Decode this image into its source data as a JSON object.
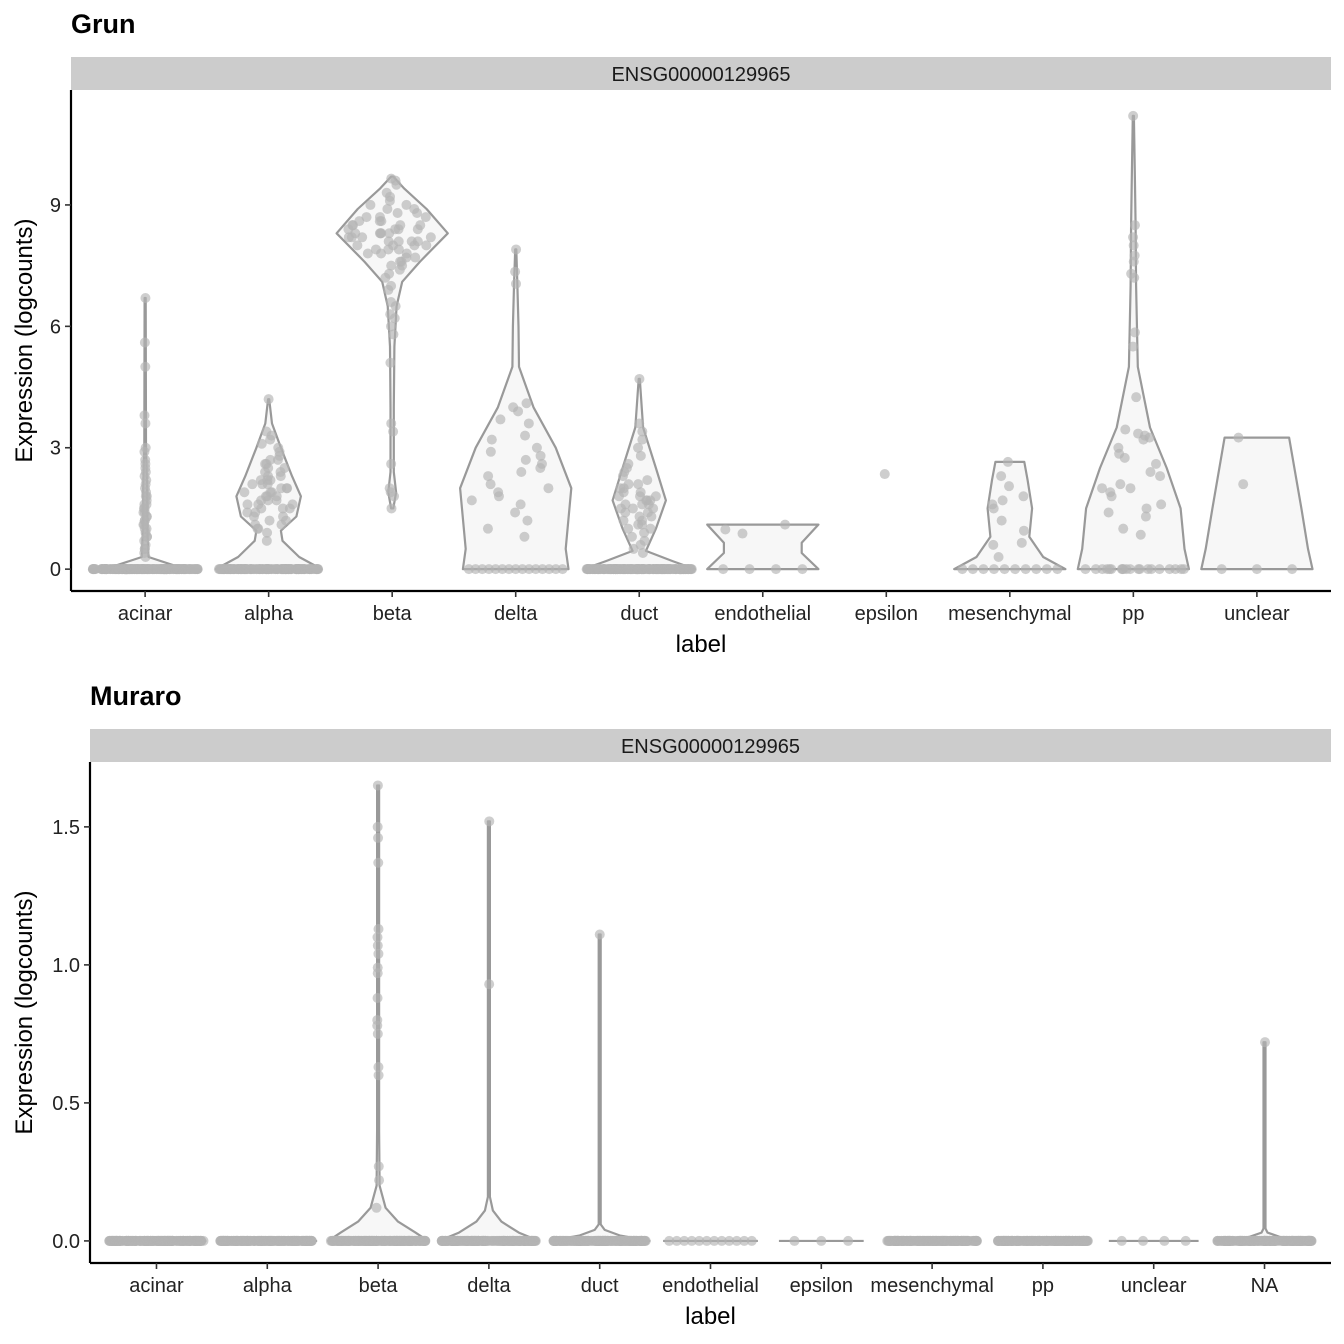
{
  "chart_data": [
    {
      "type": "violin",
      "title": "Grun",
      "facet_label": "ENSG00000129965",
      "xlabel": "label",
      "ylabel": "Expression (logcounts)",
      "ylim": [
        -0.54,
        11.84
      ],
      "yticks": [
        0,
        3,
        6,
        9
      ],
      "ytick_labels": [
        "0",
        "3",
        "6",
        "9"
      ],
      "colors": {
        "points": "#b3b3b3",
        "violin_stroke": "#999999",
        "violin_fill": "#f7f7f7",
        "strip": "#cccccc"
      },
      "categories": [
        "acinar",
        "alpha",
        "beta",
        "delta",
        "duct",
        "endothelial",
        "epsilon",
        "mesenchymal",
        "pp",
        "unclear"
      ],
      "groups": [
        {
          "name": "acinar",
          "zero_count": 200,
          "density": [
            [
              0,
              1
            ],
            [
              0.1,
              0.5
            ],
            [
              0.3,
              0.06
            ],
            [
              1,
              0.04
            ],
            [
              2,
              0.035
            ],
            [
              3,
              0.015
            ],
            [
              6.7,
              0.01
            ]
          ],
          "values": [
            0.3,
            0.4,
            0.5,
            0.5,
            0.6,
            0.7,
            0.8,
            0.8,
            0.9,
            1.0,
            1.0,
            1.1,
            1.1,
            1.2,
            1.2,
            1.3,
            1.3,
            1.4,
            1.4,
            1.5,
            1.5,
            1.6,
            1.6,
            1.7,
            1.8,
            1.8,
            1.9,
            2.0,
            2.1,
            2.2,
            2.3,
            2.4,
            2.5,
            2.6,
            2.7,
            2.9,
            3.0,
            3.6,
            3.8,
            5.0,
            5.6,
            6.7
          ]
        },
        {
          "name": "alpha",
          "zero_count": 150,
          "density": [
            [
              0,
              0.95
            ],
            [
              0.3,
              0.55
            ],
            [
              0.7,
              0.25
            ],
            [
              0.95,
              0.22
            ],
            [
              1.3,
              0.5
            ],
            [
              1.8,
              0.58
            ],
            [
              2.3,
              0.42
            ],
            [
              3,
              0.22
            ],
            [
              3.6,
              0.06
            ],
            [
              4.2,
              0.01
            ]
          ],
          "values": [
            0.7,
            0.9,
            1.0,
            1.0,
            1.1,
            1.1,
            1.2,
            1.2,
            1.3,
            1.3,
            1.4,
            1.4,
            1.5,
            1.5,
            1.5,
            1.6,
            1.6,
            1.6,
            1.7,
            1.7,
            1.7,
            1.8,
            1.8,
            1.8,
            1.9,
            1.9,
            1.9,
            2.0,
            2.0,
            2.0,
            2.1,
            2.1,
            2.1,
            2.2,
            2.2,
            2.2,
            2.3,
            2.3,
            2.4,
            2.4,
            2.5,
            2.5,
            2.6,
            2.6,
            2.7,
            2.7,
            2.8,
            2.9,
            3.0,
            3.1,
            3.2,
            3.3,
            3.4,
            4.2
          ]
        },
        {
          "name": "beta",
          "zero_count": 0,
          "density": [
            [
              1.5,
              0.02
            ],
            [
              1.9,
              0.07
            ],
            [
              2.4,
              0.03
            ],
            [
              4,
              0.03
            ],
            [
              5.5,
              0.04
            ],
            [
              6.5,
              0.08
            ],
            [
              7.1,
              0.18
            ],
            [
              7.6,
              0.5
            ],
            [
              8.3,
              1
            ],
            [
              8.9,
              0.62
            ],
            [
              9.4,
              0.22
            ],
            [
              9.7,
              0.02
            ]
          ],
          "values": [
            1.5,
            1.8,
            1.9,
            2.0,
            2.6,
            3.4,
            3.6,
            5.1,
            5.8,
            6.0,
            6.2,
            6.3,
            6.5,
            6.6,
            6.9,
            7.0,
            7.2,
            7.3,
            7.4,
            7.5,
            7.5,
            7.6,
            7.6,
            7.7,
            7.7,
            7.8,
            7.8,
            7.8,
            7.9,
            7.9,
            7.9,
            8.0,
            8.0,
            8.0,
            8.0,
            8.1,
            8.1,
            8.1,
            8.1,
            8.2,
            8.2,
            8.2,
            8.2,
            8.3,
            8.3,
            8.3,
            8.3,
            8.3,
            8.4,
            8.4,
            8.4,
            8.4,
            8.5,
            8.5,
            8.5,
            8.5,
            8.6,
            8.6,
            8.6,
            8.7,
            8.7,
            8.7,
            8.8,
            8.8,
            8.9,
            8.9,
            9.0,
            9.0,
            9.1,
            9.2,
            9.3,
            9.5,
            9.6,
            9.65
          ]
        },
        {
          "name": "delta",
          "zero_count": 15,
          "density": [
            [
              0,
              0.95
            ],
            [
              0.5,
              0.9
            ],
            [
              2,
              1
            ],
            [
              3,
              0.72
            ],
            [
              4,
              0.32
            ],
            [
              5,
              0.06
            ],
            [
              6,
              0.05
            ],
            [
              7,
              0.03
            ],
            [
              7.9,
              0.01
            ]
          ],
          "values": [
            0.8,
            1.0,
            1.2,
            1.4,
            1.6,
            1.7,
            1.8,
            1.9,
            2.0,
            2.1,
            2.3,
            2.4,
            2.5,
            2.6,
            2.7,
            2.8,
            2.9,
            3.0,
            3.2,
            3.3,
            3.6,
            3.7,
            3.9,
            4.0,
            4.1,
            7.05,
            7.35,
            7.9
          ]
        },
        {
          "name": "duct",
          "zero_count": 200,
          "density": [
            [
              0,
              1
            ],
            [
              0.2,
              0.6
            ],
            [
              0.45,
              0.12
            ],
            [
              1,
              0.3
            ],
            [
              1.7,
              0.48
            ],
            [
              2.5,
              0.3
            ],
            [
              3.5,
              0.07
            ],
            [
              4.7,
              0.01
            ]
          ],
          "values": [
            0.4,
            0.5,
            0.6,
            0.7,
            0.8,
            0.9,
            1.0,
            1.0,
            1.1,
            1.1,
            1.2,
            1.2,
            1.3,
            1.3,
            1.4,
            1.4,
            1.5,
            1.5,
            1.5,
            1.6,
            1.6,
            1.6,
            1.7,
            1.7,
            1.7,
            1.8,
            1.8,
            1.8,
            1.9,
            1.9,
            2.0,
            2.0,
            2.1,
            2.1,
            2.2,
            2.3,
            2.4,
            2.5,
            2.6,
            2.8,
            3.0,
            3.2,
            3.4,
            3.6,
            4.7
          ]
        },
        {
          "name": "endothelial",
          "zero_count": 4,
          "density": [
            [
              0,
              1
            ],
            [
              0.4,
              0.7
            ],
            [
              0.65,
              0.7
            ],
            [
              1.1,
              1
            ]
          ],
          "values": [
            0.88,
            0.98,
            1.1
          ]
        },
        {
          "name": "epsilon",
          "zero_count": 0,
          "density": [],
          "values": [
            2.35
          ]
        },
        {
          "name": "mesenchymal",
          "zero_count": 10,
          "density": [
            [
              0,
              1
            ],
            [
              0.3,
              0.6
            ],
            [
              0.8,
              0.35
            ],
            [
              1.5,
              0.4
            ],
            [
              2.2,
              0.32
            ],
            [
              2.65,
              0.26
            ]
          ],
          "values": [
            0.3,
            0.6,
            0.65,
            0.95,
            1.2,
            1.5,
            1.6,
            1.7,
            1.8,
            2.05,
            2.3,
            2.65
          ]
        },
        {
          "name": "pp",
          "zero_count": 20,
          "density": [
            [
              0,
              1
            ],
            [
              0.5,
              0.92
            ],
            [
              1.5,
              0.85
            ],
            [
              2.5,
              0.6
            ],
            [
              3.5,
              0.3
            ],
            [
              5,
              0.08
            ],
            [
              7,
              0.05
            ],
            [
              8.5,
              0.04
            ],
            [
              9.5,
              0.03
            ],
            [
              11.2,
              0.01
            ]
          ],
          "values": [
            0.85,
            1.0,
            1.3,
            1.4,
            1.5,
            1.6,
            1.8,
            1.9,
            2.0,
            2.0,
            2.1,
            2.3,
            2.4,
            2.6,
            2.75,
            2.85,
            3.0,
            3.2,
            3.25,
            3.3,
            3.35,
            3.45,
            4.25,
            5.5,
            5.85,
            7.2,
            7.3,
            7.6,
            7.75,
            8.0,
            8.2,
            8.5,
            11.2
          ]
        },
        {
          "name": "unclear",
          "zero_count": 3,
          "density": [
            [
              0,
              1
            ],
            [
              0.5,
              0.92
            ],
            [
              1.5,
              0.8
            ],
            [
              3.25,
              0.58
            ]
          ],
          "values": [
            2.1,
            3.25
          ]
        }
      ]
    },
    {
      "type": "violin",
      "title": "Muraro",
      "facet_label": "ENSG00000129965",
      "xlabel": "label",
      "ylabel": "Expression (logcounts)",
      "ylim": [
        -0.08,
        1.735
      ],
      "yticks": [
        0,
        0.5,
        1.0,
        1.5
      ],
      "ytick_labels": [
        "0.0",
        "0.5",
        "1.0",
        "1.5"
      ],
      "colors": {
        "points": "#b3b3b3",
        "violin_stroke": "#999999",
        "violin_fill": "#f7f7f7",
        "strip": "#cccccc"
      },
      "categories": [
        "acinar",
        "alpha",
        "beta",
        "delta",
        "duct",
        "endothelial",
        "epsilon",
        "mesenchymal",
        "pp",
        "unclear",
        "NA"
      ],
      "groups": [
        {
          "name": "acinar",
          "zero_count": 200,
          "density": [
            [
              0,
              1
            ]
          ],
          "values": []
        },
        {
          "name": "alpha",
          "zero_count": 200,
          "density": [
            [
              0,
              1
            ]
          ],
          "values": []
        },
        {
          "name": "beta",
          "zero_count": 200,
          "density": [
            [
              0,
              1
            ],
            [
              0.03,
              0.75
            ],
            [
              0.07,
              0.4
            ],
            [
              0.12,
              0.15
            ],
            [
              0.2,
              0.03
            ],
            [
              0.4,
              0.02
            ],
            [
              1.65,
              0.02
            ]
          ],
          "values": [
            0.12,
            0.22,
            0.27,
            0.6,
            0.63,
            0.75,
            0.78,
            0.8,
            0.88,
            0.97,
            0.99,
            1.04,
            1.07,
            1.1,
            1.13,
            1.37,
            1.46,
            1.5,
            1.65
          ]
        },
        {
          "name": "delta",
          "zero_count": 200,
          "density": [
            [
              0,
              1
            ],
            [
              0.03,
              0.6
            ],
            [
              0.07,
              0.25
            ],
            [
              0.11,
              0.08
            ],
            [
              0.16,
              0.02
            ],
            [
              1.52,
              0.02
            ]
          ],
          "values": [
            0.93,
            1.52
          ]
        },
        {
          "name": "duct",
          "zero_count": 200,
          "density": [
            [
              0,
              1
            ],
            [
              0.02,
              0.4
            ],
            [
              0.04,
              0.1
            ],
            [
              0.06,
              0.02
            ],
            [
              1.11,
              0.02
            ]
          ],
          "values": [
            1.11
          ]
        },
        {
          "name": "endothelial",
          "zero_count": 12,
          "density": [
            [
              0,
              0.95
            ]
          ],
          "values": []
        },
        {
          "name": "epsilon",
          "zero_count": 3,
          "density": [
            [
              0,
              0.85
            ]
          ],
          "values": []
        },
        {
          "name": "mesenchymal",
          "zero_count": 200,
          "density": [
            [
              0,
              0.95
            ]
          ],
          "values": []
        },
        {
          "name": "pp",
          "zero_count": 200,
          "density": [
            [
              0,
              0.95
            ]
          ],
          "values": []
        },
        {
          "name": "unclear",
          "zero_count": 4,
          "density": [
            [
              0,
              0.9
            ]
          ],
          "values": []
        },
        {
          "name": "NA",
          "zero_count": 200,
          "density": [
            [
              0,
              1
            ],
            [
              0.015,
              0.3
            ],
            [
              0.03,
              0.06
            ],
            [
              0.045,
              0.02
            ],
            [
              0.72,
              0.02
            ]
          ],
          "values": [
            0.72
          ]
        }
      ]
    }
  ]
}
